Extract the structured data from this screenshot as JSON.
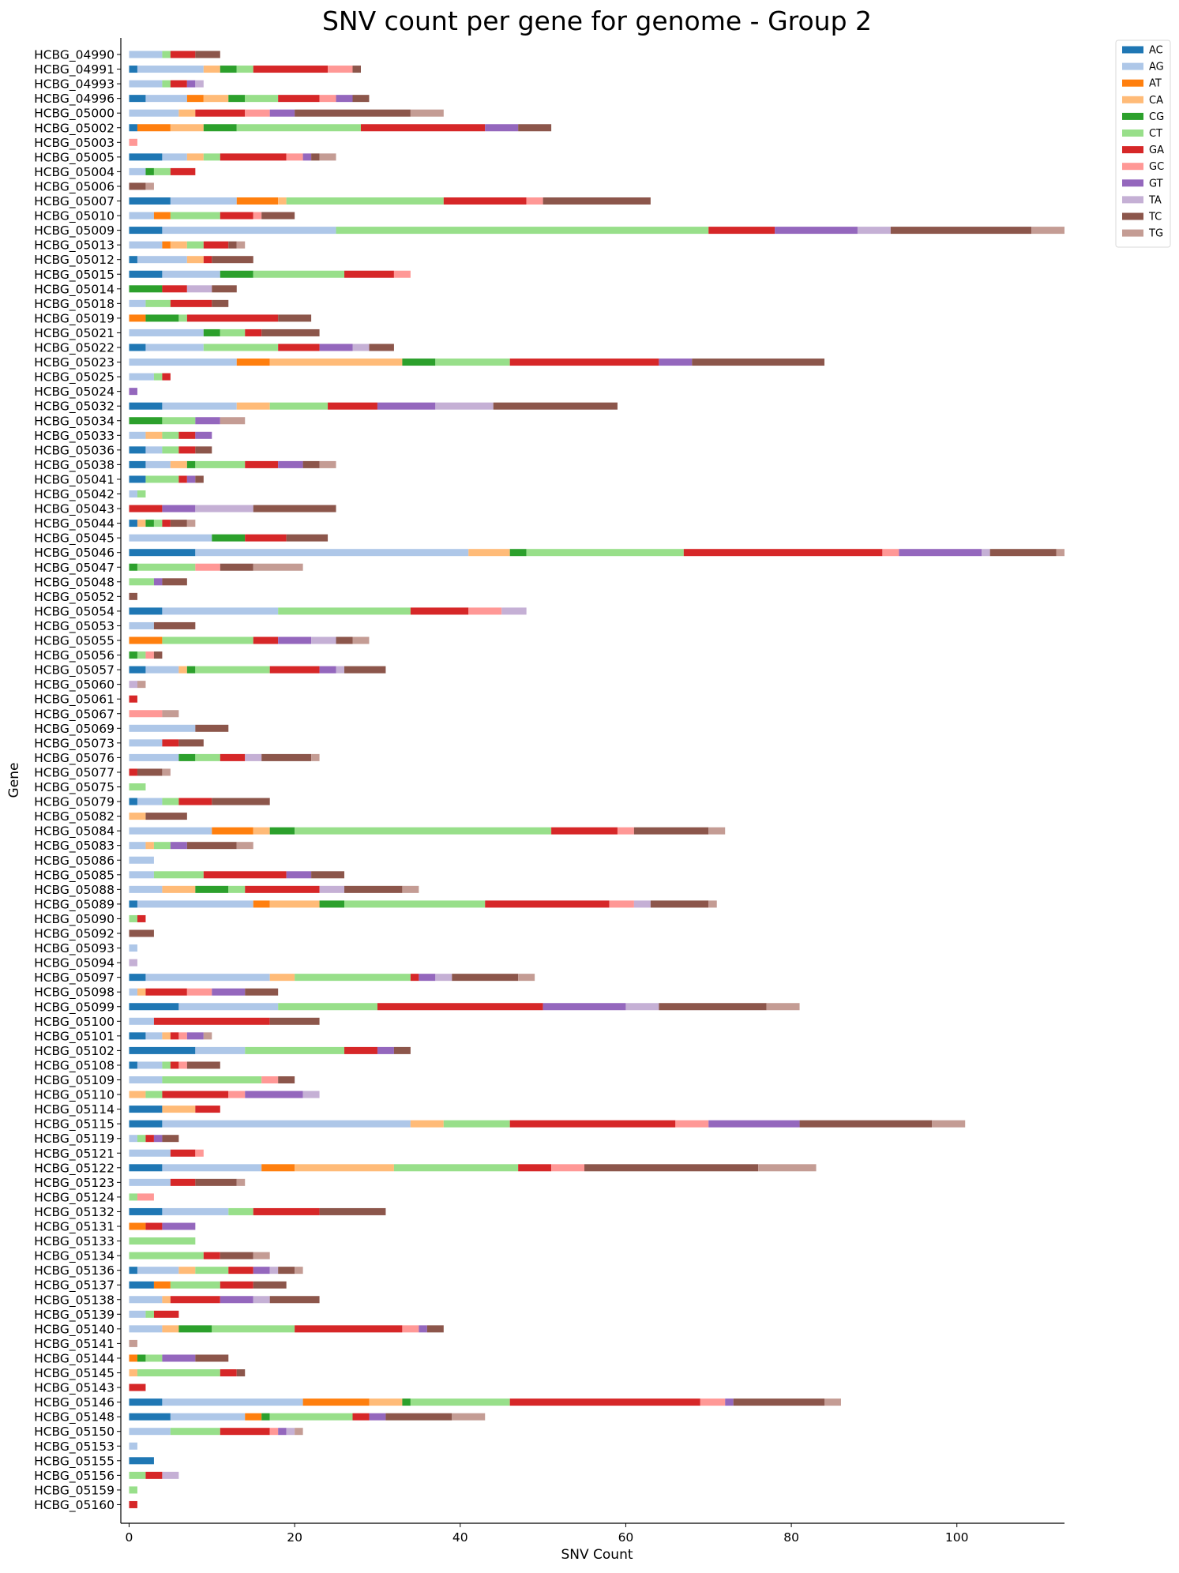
{
  "chart_data": {
    "type": "bar",
    "orientation": "horizontal",
    "stacked": true,
    "title": "SNV count per gene for genome - Group 2",
    "xlabel": "SNV Count",
    "ylabel": "Gene",
    "xlim": [
      -1,
      113
    ],
    "xticks": [
      0,
      20,
      40,
      60,
      80,
      100
    ],
    "grid": false,
    "legend": "top-right outside",
    "series_names": [
      "AC",
      "AG",
      "AT",
      "CA",
      "CG",
      "CT",
      "GA",
      "GC",
      "GT",
      "TA",
      "TC",
      "TG"
    ],
    "colors": [
      "#1f77b4",
      "#aec7e8",
      "#ff7f0e",
      "#ffbb78",
      "#2ca02c",
      "#98df8a",
      "#d62728",
      "#ff9896",
      "#9467bd",
      "#c5b0d5",
      "#8c564b",
      "#c49c94"
    ],
    "categories": [
      "HCBG_04990",
      "HCBG_04991",
      "HCBG_04993",
      "HCBG_04996",
      "HCBG_05000",
      "HCBG_05002",
      "HCBG_05003",
      "HCBG_05005",
      "HCBG_05004",
      "HCBG_05006",
      "HCBG_05007",
      "HCBG_05010",
      "HCBG_05009",
      "HCBG_05013",
      "HCBG_05012",
      "HCBG_05015",
      "HCBG_05014",
      "HCBG_05018",
      "HCBG_05019",
      "HCBG_05021",
      "HCBG_05022",
      "HCBG_05023",
      "HCBG_05025",
      "HCBG_05024",
      "HCBG_05032",
      "HCBG_05034",
      "HCBG_05033",
      "HCBG_05036",
      "HCBG_05038",
      "HCBG_05041",
      "HCBG_05042",
      "HCBG_05043",
      "HCBG_05044",
      "HCBG_05045",
      "HCBG_05046",
      "HCBG_05047",
      "HCBG_05048",
      "HCBG_05052",
      "HCBG_05054",
      "HCBG_05053",
      "HCBG_05055",
      "HCBG_05056",
      "HCBG_05057",
      "HCBG_05060",
      "HCBG_05061",
      "HCBG_05067",
      "HCBG_05069",
      "HCBG_05073",
      "HCBG_05076",
      "HCBG_05077",
      "HCBG_05075",
      "HCBG_05079",
      "HCBG_05082",
      "HCBG_05084",
      "HCBG_05083",
      "HCBG_05086",
      "HCBG_05085",
      "HCBG_05088",
      "HCBG_05089",
      "HCBG_05090",
      "HCBG_05092",
      "HCBG_05093",
      "HCBG_05094",
      "HCBG_05097",
      "HCBG_05098",
      "HCBG_05099",
      "HCBG_05100",
      "HCBG_05101",
      "HCBG_05102",
      "HCBG_05108",
      "HCBG_05109",
      "HCBG_05110",
      "HCBG_05114",
      "HCBG_05115",
      "HCBG_05119",
      "HCBG_05121",
      "HCBG_05122",
      "HCBG_05123",
      "HCBG_05124",
      "HCBG_05132",
      "HCBG_05131",
      "HCBG_05133",
      "HCBG_05134",
      "HCBG_05136",
      "HCBG_05137",
      "HCBG_05138",
      "HCBG_05139",
      "HCBG_05140",
      "HCBG_05141",
      "HCBG_05144",
      "HCBG_05145",
      "HCBG_05143",
      "HCBG_05146",
      "HCBG_05148",
      "HCBG_05150",
      "HCBG_05153",
      "HCBG_05155",
      "HCBG_05156",
      "HCBG_05159",
      "HCBG_05160"
    ],
    "counts": [
      [
        0,
        4,
        0,
        0,
        0,
        1,
        3,
        0,
        0,
        0,
        3,
        0
      ],
      [
        1,
        8,
        0,
        2,
        2,
        2,
        9,
        3,
        0,
        0,
        1,
        0
      ],
      [
        0,
        4,
        0,
        0,
        0,
        1,
        2,
        0,
        1,
        1,
        0,
        0
      ],
      [
        2,
        5,
        2,
        3,
        2,
        4,
        5,
        2,
        2,
        0,
        2,
        0
      ],
      [
        0,
        6,
        0,
        2,
        0,
        0,
        6,
        3,
        3,
        0,
        14,
        4
      ],
      [
        1,
        0,
        4,
        4,
        4,
        15,
        15,
        0,
        4,
        0,
        4,
        0
      ],
      [
        0,
        0,
        0,
        0,
        0,
        0,
        0,
        1,
        0,
        0,
        0,
        0
      ],
      [
        4,
        3,
        0,
        2,
        0,
        2,
        8,
        2,
        1,
        0,
        1,
        2
      ],
      [
        0,
        2,
        0,
        0,
        1,
        2,
        3,
        0,
        0,
        0,
        0,
        0
      ],
      [
        0,
        0,
        0,
        0,
        0,
        0,
        0,
        0,
        0,
        0,
        2,
        1
      ],
      [
        5,
        8,
        5,
        1,
        0,
        19,
        10,
        2,
        0,
        0,
        13,
        0
      ],
      [
        0,
        3,
        2,
        0,
        0,
        6,
        4,
        1,
        0,
        0,
        4,
        0
      ],
      [
        4,
        21,
        0,
        0,
        0,
        45,
        8,
        0,
        10,
        4,
        17,
        4
      ],
      [
        0,
        4,
        1,
        2,
        0,
        2,
        3,
        0,
        0,
        0,
        1,
        1
      ],
      [
        1,
        6,
        0,
        2,
        0,
        0,
        1,
        0,
        0,
        0,
        5,
        0
      ],
      [
        4,
        7,
        0,
        0,
        4,
        11,
        6,
        2,
        0,
        0,
        0,
        0
      ],
      [
        0,
        0,
        0,
        0,
        4,
        0,
        3,
        0,
        0,
        3,
        3,
        0
      ],
      [
        0,
        2,
        0,
        0,
        0,
        3,
        5,
        0,
        0,
        0,
        2,
        0
      ],
      [
        0,
        0,
        2,
        0,
        4,
        1,
        11,
        0,
        0,
        0,
        4,
        0
      ],
      [
        0,
        9,
        0,
        0,
        2,
        3,
        2,
        0,
        0,
        0,
        7,
        0
      ],
      [
        2,
        7,
        0,
        0,
        0,
        9,
        5,
        0,
        4,
        2,
        3,
        0
      ],
      [
        0,
        13,
        4,
        16,
        4,
        9,
        18,
        0,
        4,
        0,
        16,
        0
      ],
      [
        0,
        3,
        0,
        0,
        0,
        1,
        1,
        0,
        0,
        0,
        0,
        0
      ],
      [
        0,
        0,
        0,
        0,
        0,
        0,
        0,
        0,
        1,
        0,
        0,
        0
      ],
      [
        4,
        9,
        0,
        4,
        0,
        7,
        6,
        0,
        7,
        7,
        15,
        0
      ],
      [
        0,
        0,
        0,
        0,
        4,
        4,
        0,
        0,
        3,
        0,
        0,
        3
      ],
      [
        0,
        2,
        0,
        2,
        0,
        2,
        2,
        0,
        2,
        0,
        0,
        0
      ],
      [
        2,
        2,
        0,
        0,
        0,
        2,
        2,
        0,
        0,
        0,
        2,
        0
      ],
      [
        2,
        3,
        0,
        2,
        1,
        6,
        4,
        0,
        3,
        0,
        2,
        2
      ],
      [
        2,
        0,
        0,
        0,
        0,
        4,
        1,
        0,
        1,
        0,
        1,
        0
      ],
      [
        0,
        1,
        0,
        0,
        0,
        1,
        0,
        0,
        0,
        0,
        0,
        0
      ],
      [
        0,
        0,
        0,
        0,
        0,
        0,
        4,
        0,
        4,
        7,
        10,
        0
      ],
      [
        1,
        0,
        0,
        1,
        1,
        1,
        1,
        0,
        0,
        0,
        2,
        1
      ],
      [
        0,
        10,
        0,
        0,
        4,
        0,
        5,
        0,
        0,
        0,
        5,
        0
      ],
      [
        8,
        33,
        0,
        5,
        2,
        19,
        24,
        2,
        10,
        1,
        8,
        1
      ],
      [
        0,
        0,
        0,
        0,
        1,
        7,
        0,
        3,
        0,
        0,
        4,
        6
      ],
      [
        0,
        0,
        0,
        0,
        0,
        3,
        0,
        0,
        1,
        0,
        3,
        0
      ],
      [
        0,
        0,
        0,
        0,
        0,
        0,
        0,
        0,
        0,
        0,
        1,
        0
      ],
      [
        4,
        14,
        0,
        0,
        0,
        16,
        7,
        4,
        0,
        3,
        0,
        0
      ],
      [
        0,
        3,
        0,
        0,
        0,
        0,
        0,
        0,
        0,
        0,
        5,
        0
      ],
      [
        0,
        0,
        4,
        0,
        0,
        11,
        3,
        0,
        4,
        3,
        2,
        2
      ],
      [
        0,
        0,
        0,
        0,
        1,
        1,
        0,
        1,
        0,
        0,
        1,
        0
      ],
      [
        2,
        4,
        0,
        1,
        1,
        9,
        6,
        0,
        2,
        1,
        5,
        0
      ],
      [
        0,
        0,
        0,
        0,
        0,
        0,
        0,
        0,
        0,
        1,
        0,
        1
      ],
      [
        0,
        0,
        0,
        0,
        0,
        0,
        1,
        0,
        0,
        0,
        0,
        0
      ],
      [
        0,
        0,
        0,
        0,
        0,
        0,
        0,
        4,
        0,
        0,
        0,
        2
      ],
      [
        0,
        8,
        0,
        0,
        0,
        0,
        0,
        0,
        0,
        0,
        4,
        0
      ],
      [
        0,
        4,
        0,
        0,
        0,
        0,
        2,
        0,
        0,
        0,
        3,
        0
      ],
      [
        0,
        6,
        0,
        0,
        2,
        3,
        3,
        0,
        0,
        2,
        6,
        1
      ],
      [
        0,
        0,
        0,
        0,
        0,
        0,
        1,
        0,
        0,
        0,
        3,
        1
      ],
      [
        0,
        0,
        0,
        0,
        0,
        2,
        0,
        0,
        0,
        0,
        0,
        0
      ],
      [
        1,
        3,
        0,
        0,
        0,
        2,
        4,
        0,
        0,
        0,
        7,
        0
      ],
      [
        0,
        0,
        0,
        2,
        0,
        0,
        0,
        0,
        0,
        0,
        5,
        0
      ],
      [
        0,
        10,
        5,
        2,
        3,
        31,
        8,
        2,
        0,
        0,
        9,
        2
      ],
      [
        0,
        2,
        0,
        1,
        0,
        2,
        0,
        0,
        2,
        0,
        6,
        2
      ],
      [
        0,
        3,
        0,
        0,
        0,
        0,
        0,
        0,
        0,
        0,
        0,
        0
      ],
      [
        0,
        3,
        0,
        0,
        0,
        6,
        10,
        0,
        3,
        0,
        4,
        0
      ],
      [
        0,
        4,
        0,
        4,
        4,
        2,
        9,
        0,
        0,
        3,
        7,
        2
      ],
      [
        1,
        14,
        2,
        6,
        3,
        17,
        15,
        3,
        0,
        2,
        7,
        1
      ],
      [
        0,
        0,
        0,
        0,
        0,
        1,
        1,
        0,
        0,
        0,
        0,
        0
      ],
      [
        0,
        0,
        0,
        0,
        0,
        0,
        0,
        0,
        0,
        0,
        3,
        0
      ],
      [
        0,
        1,
        0,
        0,
        0,
        0,
        0,
        0,
        0,
        0,
        0,
        0
      ],
      [
        0,
        0,
        0,
        0,
        0,
        0,
        0,
        0,
        0,
        1,
        0,
        0
      ],
      [
        2,
        15,
        0,
        3,
        0,
        14,
        1,
        0,
        2,
        2,
        8,
        2
      ],
      [
        0,
        1,
        0,
        1,
        0,
        0,
        5,
        3,
        4,
        0,
        4,
        0
      ],
      [
        6,
        12,
        0,
        0,
        0,
        12,
        20,
        0,
        10,
        4,
        13,
        4
      ],
      [
        0,
        3,
        0,
        0,
        0,
        0,
        14,
        0,
        0,
        0,
        6,
        0
      ],
      [
        2,
        2,
        0,
        1,
        0,
        0,
        1,
        1,
        2,
        0,
        0,
        1
      ],
      [
        8,
        6,
        0,
        0,
        0,
        12,
        4,
        0,
        2,
        0,
        2,
        0
      ],
      [
        1,
        3,
        0,
        0,
        0,
        1,
        1,
        1,
        0,
        0,
        4,
        0
      ],
      [
        0,
        4,
        0,
        0,
        0,
        12,
        0,
        2,
        0,
        0,
        2,
        0
      ],
      [
        0,
        0,
        0,
        2,
        0,
        2,
        8,
        2,
        7,
        2,
        0,
        0
      ],
      [
        4,
        0,
        0,
        4,
        0,
        0,
        3,
        0,
        0,
        0,
        0,
        0
      ],
      [
        4,
        30,
        0,
        4,
        0,
        8,
        20,
        4,
        11,
        0,
        16,
        4
      ],
      [
        0,
        1,
        0,
        0,
        0,
        1,
        1,
        0,
        1,
        0,
        2,
        0
      ],
      [
        0,
        5,
        0,
        0,
        0,
        0,
        3,
        1,
        0,
        0,
        0,
        0
      ],
      [
        4,
        12,
        4,
        12,
        0,
        15,
        4,
        4,
        0,
        0,
        21,
        7
      ],
      [
        0,
        5,
        0,
        0,
        0,
        0,
        3,
        0,
        0,
        0,
        5,
        1
      ],
      [
        0,
        0,
        0,
        0,
        0,
        1,
        0,
        2,
        0,
        0,
        0,
        0
      ],
      [
        4,
        8,
        0,
        0,
        0,
        3,
        8,
        0,
        0,
        0,
        8,
        0
      ],
      [
        0,
        0,
        2,
        0,
        0,
        0,
        2,
        0,
        4,
        0,
        0,
        0
      ],
      [
        0,
        0,
        0,
        0,
        0,
        8,
        0,
        0,
        0,
        0,
        0,
        0
      ],
      [
        0,
        0,
        0,
        0,
        0,
        9,
        2,
        0,
        0,
        0,
        4,
        2
      ],
      [
        1,
        5,
        0,
        2,
        0,
        4,
        3,
        0,
        2,
        1,
        2,
        1
      ],
      [
        3,
        0,
        2,
        0,
        0,
        6,
        4,
        0,
        0,
        0,
        4,
        0
      ],
      [
        0,
        4,
        0,
        1,
        0,
        0,
        6,
        0,
        4,
        2,
        6,
        0
      ],
      [
        0,
        2,
        0,
        0,
        0,
        1,
        3,
        0,
        0,
        0,
        0,
        0
      ],
      [
        0,
        4,
        0,
        2,
        4,
        10,
        13,
        2,
        1,
        0,
        2,
        0
      ],
      [
        0,
        0,
        0,
        0,
        0,
        0,
        0,
        0,
        0,
        0,
        0,
        1
      ],
      [
        0,
        0,
        1,
        0,
        1,
        2,
        0,
        0,
        4,
        0,
        4,
        0
      ],
      [
        0,
        0,
        0,
        1,
        0,
        10,
        2,
        0,
        0,
        0,
        1,
        0
      ],
      [
        0,
        0,
        0,
        0,
        0,
        0,
        2,
        0,
        0,
        0,
        0,
        0
      ],
      [
        4,
        17,
        8,
        4,
        1,
        12,
        23,
        3,
        1,
        0,
        11,
        2
      ],
      [
        5,
        9,
        2,
        0,
        1,
        10,
        2,
        0,
        2,
        0,
        8,
        4
      ],
      [
        0,
        5,
        0,
        0,
        0,
        6,
        6,
        1,
        1,
        1,
        0,
        1
      ],
      [
        0,
        1,
        0,
        0,
        0,
        0,
        0,
        0,
        0,
        0,
        0,
        0
      ],
      [
        3,
        0,
        0,
        0,
        0,
        0,
        0,
        0,
        0,
        0,
        0,
        0
      ],
      [
        0,
        0,
        0,
        0,
        0,
        2,
        2,
        0,
        0,
        2,
        0,
        0
      ],
      [
        0,
        0,
        0,
        0,
        0,
        1,
        0,
        0,
        0,
        0,
        0,
        0
      ],
      [
        0,
        0,
        0,
        0,
        0,
        0,
        1,
        0,
        0,
        0,
        0,
        0
      ]
    ]
  }
}
